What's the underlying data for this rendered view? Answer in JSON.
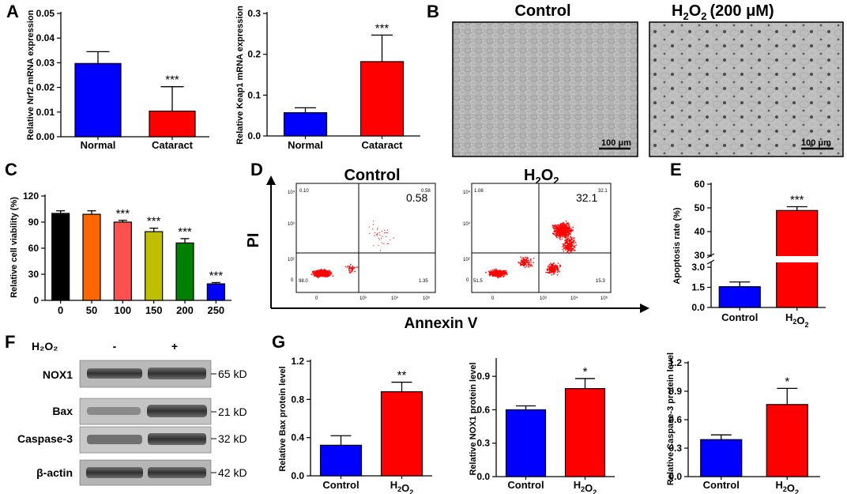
{
  "panels": {
    "A": "A",
    "B": "B",
    "C": "C",
    "D": "D",
    "E": "E",
    "F": "F",
    "G": "G"
  },
  "micro": {
    "control": "Control",
    "h2o2_base": "H",
    "h2o2_sub1": "2",
    "h2o2_o": "O",
    "h2o2_sub2": "2",
    "treat_dose": "(200 μM)",
    "scale_left": "100 μm",
    "scale_right": "100 μm"
  },
  "flow": {
    "control": "Control",
    "h2o2_base": "H",
    "h2o2_sub1": "2",
    "h2o2_o": "O",
    "h2o2_sub2": "2",
    "yaxis": "PI",
    "xaxis": "Annexin V",
    "control_quadrants": {
      "ul": "0.10",
      "ur_small": "0.58",
      "ur_big": "0.58",
      "ll": "98.0",
      "lr": "1.35"
    },
    "h2o2_quadrants": {
      "ul": "1.08",
      "ur_small": "32.1",
      "ur_big": "32.1",
      "ll": "51.5",
      "lr": "15.3"
    },
    "y_ticks": [
      "10⁴",
      "10³",
      "10²",
      "0"
    ],
    "x_ticks": [
      "0",
      "10³",
      "10⁴",
      "10⁵"
    ]
  },
  "western": {
    "row_header": "H₂O₂",
    "lane_minus": "-",
    "lane_plus": "+",
    "bands": [
      {
        "label": "NOX1",
        "kd": "65 kD"
      },
      {
        "label": "Bax",
        "kd": "21 kD"
      },
      {
        "label": "Caspase-3",
        "kd": "32 kD"
      },
      {
        "label": "β-actin",
        "kd": "42 kD"
      }
    ]
  },
  "colors": {
    "blue": "#0000ff",
    "red": "#ff0000",
    "black": "#000000",
    "orange": "#ff6600",
    "salmon": "#ff5050",
    "olive": "#bfbf00",
    "green": "#008000",
    "flow": "#ff0000"
  },
  "chart_data": [
    {
      "id": "nrf2",
      "type": "bar",
      "categories": [
        "Normal",
        "Cataract"
      ],
      "values": [
        0.0297,
        0.0104
      ],
      "errors": [
        0.0048,
        0.0099
      ],
      "colors": [
        "#0000ff",
        "#ff0000"
      ],
      "sig": [
        "",
        "***"
      ],
      "ylabel": "Relative Nrf2 mRNA expression",
      "ylim": [
        0,
        0.05
      ],
      "yticks": [
        0,
        0.01,
        0.02,
        0.03,
        0.04,
        0.05
      ],
      "ytick_labels": [
        "0.00",
        "0.01",
        "0.02",
        "0.03",
        "0.04",
        "0.05"
      ]
    },
    {
      "id": "keap1",
      "type": "bar",
      "categories": [
        "Normal",
        "Cataract"
      ],
      "values": [
        0.057,
        0.182
      ],
      "errors": [
        0.012,
        0.065
      ],
      "colors": [
        "#0000ff",
        "#ff0000"
      ],
      "sig": [
        "",
        "***"
      ],
      "ylabel": "Relative Keap1 mRNA expression",
      "ylim": [
        0,
        0.3
      ],
      "yticks": [
        0,
        0.1,
        0.2,
        0.3
      ],
      "ytick_labels": [
        "0.0",
        "0.1",
        "0.2",
        "0.3"
      ]
    },
    {
      "id": "viability",
      "type": "bar",
      "categories": [
        "0",
        "50",
        "100",
        "150",
        "200",
        "250"
      ],
      "values": [
        100,
        99,
        90,
        79,
        66,
        19
      ],
      "errors": [
        3,
        4,
        2,
        4,
        5,
        1.5
      ],
      "colors": [
        "#000000",
        "#ff6600",
        "#ff5050",
        "#bfbf00",
        "#008000",
        "#0000ff"
      ],
      "sig": [
        "",
        "",
        "***",
        "***",
        "***",
        "***"
      ],
      "ylabel": "Relative cell viability (%)",
      "ylim": [
        0,
        120
      ],
      "yticks": [
        0,
        30,
        60,
        90,
        120
      ],
      "ytick_labels": [
        "0",
        "30",
        "60",
        "90",
        "120"
      ]
    },
    {
      "id": "apoptosis",
      "type": "bar",
      "categories": [
        "Control",
        "H₂O₂"
      ],
      "values": [
        1.55,
        48.9
      ],
      "errors": [
        0.35,
        1.6
      ],
      "colors": [
        "#0000ff",
        "#ff0000"
      ],
      "sig": [
        "",
        "***"
      ],
      "ylabel": "Apoptosis rate (%)",
      "axis_break": [
        3.3,
        30
      ],
      "ylim": [
        0,
        60
      ],
      "yticks": [
        0,
        1.5,
        3.0,
        30,
        40,
        50,
        60
      ],
      "ytick_labels": [
        "0.0",
        "1.5",
        "3.0",
        "30",
        "40",
        "50",
        "60"
      ]
    },
    {
      "id": "bax",
      "type": "bar",
      "categories": [
        "Control",
        "H₂O₂"
      ],
      "values": [
        0.32,
        0.88
      ],
      "errors": [
        0.1,
        0.1
      ],
      "colors": [
        "#0000ff",
        "#ff0000"
      ],
      "sig": [
        "",
        "**"
      ],
      "ylabel": "Relative Bax protein level",
      "ylim": [
        0,
        1.2
      ],
      "yticks": [
        0,
        0.4,
        0.8,
        1.2
      ],
      "ytick_labels": [
        "0.0",
        "0.4",
        "0.8",
        "1.2"
      ]
    },
    {
      "id": "nox1",
      "type": "bar",
      "categories": [
        "Control",
        "H₂O₂"
      ],
      "values": [
        0.6,
        0.79
      ],
      "errors": [
        0.035,
        0.09
      ],
      "colors": [
        "#0000ff",
        "#ff0000"
      ],
      "sig": [
        "",
        "*"
      ],
      "ylabel": "Relative NOX1 protein level",
      "ylim": [
        0,
        1.05
      ],
      "yticks": [
        0,
        0.3,
        0.6,
        0.9
      ],
      "ytick_labels": [
        "0.0",
        "0.3",
        "0.6",
        "0.9"
      ]
    },
    {
      "id": "casp3",
      "type": "bar",
      "categories": [
        "Control",
        "H₂O₂"
      ],
      "values": [
        0.39,
        0.76
      ],
      "errors": [
        0.05,
        0.17
      ],
      "colors": [
        "#0000ff",
        "#ff0000"
      ],
      "sig": [
        "",
        "*"
      ],
      "ylabel": "Relative Caspase-3 protein level",
      "ylim": [
        0,
        1.2
      ],
      "yticks": [
        0,
        0.3,
        0.6,
        0.9,
        1.2
      ],
      "ytick_labels": [
        "0.0",
        "0.3",
        "0.6",
        "0.9",
        "1.2"
      ]
    }
  ]
}
